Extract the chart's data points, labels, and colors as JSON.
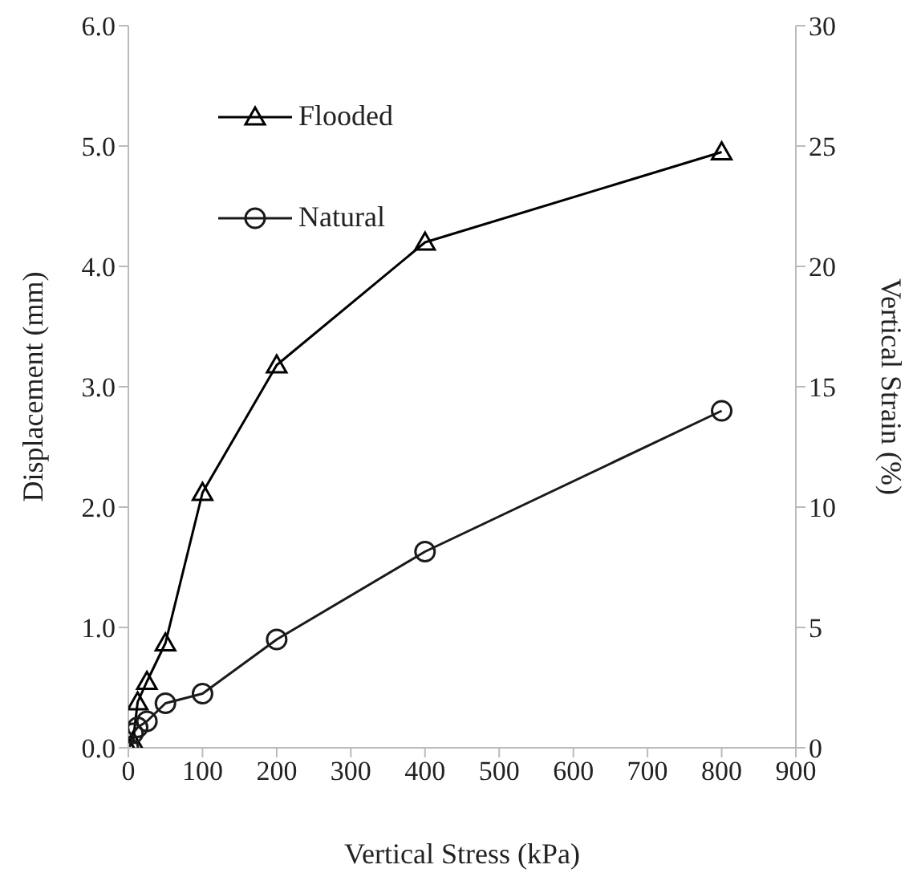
{
  "chart_data": {
    "type": "line",
    "xlabel": "Vertical Stress (kPa)",
    "ylabel": "Displacement (mm)",
    "y2label": "Vertical Strain (%)",
    "x": [
      0,
      6.25,
      12.5,
      25,
      50,
      100,
      200,
      400,
      800
    ],
    "series": [
      {
        "name": "Flooded",
        "color": "#000000",
        "marker": "triangle",
        "values": [
          0,
          0.05,
          0.38,
          0.55,
          0.87,
          2.12,
          3.18,
          4.2,
          4.95
        ]
      },
      {
        "name": "Natural",
        "color": "#1a1a1a",
        "marker": "circle",
        "values": [
          0,
          0.12,
          0.17,
          0.22,
          0.37,
          0.45,
          0.9,
          1.63,
          2.8
        ]
      }
    ],
    "xlim": [
      0,
      900
    ],
    "xticks": [
      0,
      100,
      200,
      300,
      400,
      500,
      600,
      700,
      800,
      900
    ],
    "ylim": [
      0,
      6
    ],
    "yticks": [
      {
        "value": 0,
        "label": "0.0"
      },
      {
        "value": 1,
        "label": "1.0"
      },
      {
        "value": 2,
        "label": "2.0"
      },
      {
        "value": 3,
        "label": "3.0"
      },
      {
        "value": 4,
        "label": "4.0"
      },
      {
        "value": 5,
        "label": "5.0"
      },
      {
        "value": 6,
        "label": "6.0"
      }
    ],
    "y2lim": [
      0,
      30
    ],
    "y2ticks": [
      0,
      5,
      10,
      15,
      20,
      25,
      30
    ],
    "legend": "top left",
    "line_style": "solid"
  }
}
